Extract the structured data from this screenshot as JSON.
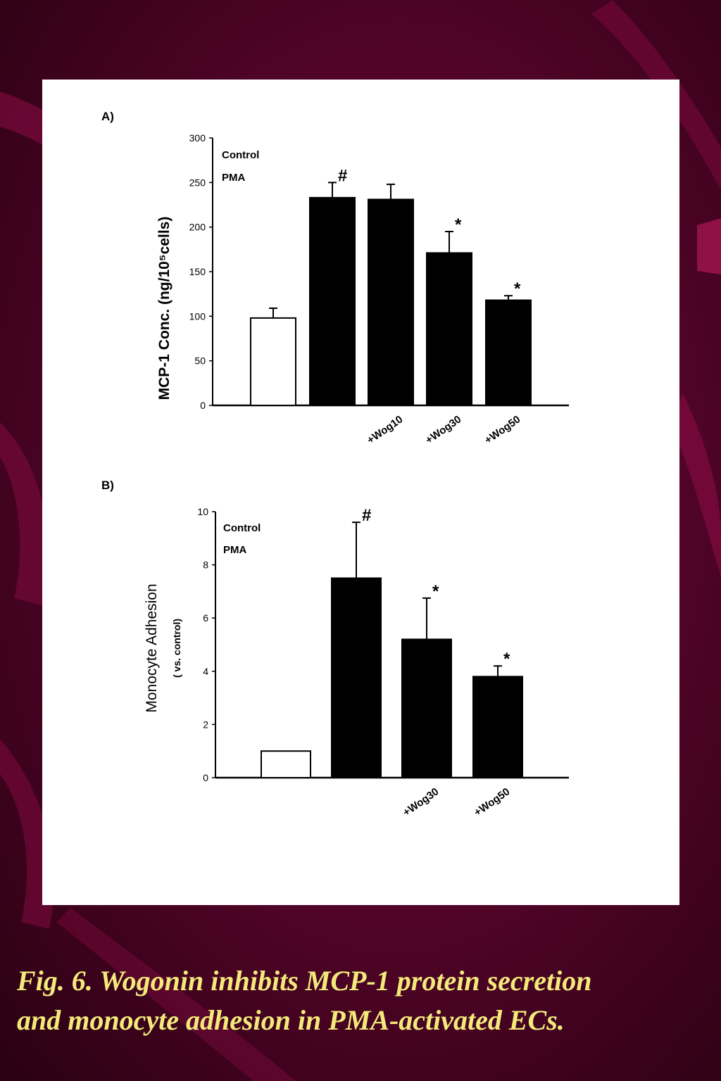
{
  "caption": {
    "line1": "Fig. 6. Wogonin inhibits MCP-1 protein secretion",
    "line2": "and monocyte adhesion in PMA-activated ECs."
  },
  "colors": {
    "background": "#55042a",
    "caption": "#f3ea7a",
    "bar_control": "#ffffff",
    "bar_pma": "#000000"
  },
  "chart_data": [
    {
      "type": "bar",
      "panel_label": "A)",
      "ylabel": "MCP-1 Conc. (ng/10⁵cells)",
      "ylim": [
        0,
        300
      ],
      "yticks": [
        "0",
        "50",
        "100",
        "150",
        "200",
        "250",
        "300"
      ],
      "legend": [
        "Control",
        "PMA"
      ],
      "categories": [
        "",
        "",
        "+Wog10",
        "+Wog30",
        "+Wog50"
      ],
      "values": [
        98,
        233,
        231,
        171,
        118
      ],
      "errors": [
        11,
        17,
        17,
        24,
        5
      ],
      "groups": [
        "Control",
        "PMA",
        "PMA",
        "PMA",
        "PMA"
      ],
      "markers": [
        "",
        "#",
        "",
        "*",
        "*"
      ]
    },
    {
      "type": "bar",
      "panel_label": "B)",
      "ylabel": "Monocyte Adhesion",
      "ylabel2": "( vs. control)",
      "ylim": [
        0,
        10
      ],
      "yticks": [
        "0",
        "2",
        "4",
        "6",
        "8",
        "10"
      ],
      "legend": [
        "Control",
        "PMA"
      ],
      "categories": [
        "",
        "",
        "+Wog30",
        "+Wog50"
      ],
      "values": [
        1.0,
        7.5,
        5.2,
        3.8
      ],
      "errors": [
        0,
        2.1,
        1.55,
        0.4
      ],
      "groups": [
        "Control",
        "PMA",
        "PMA",
        "PMA"
      ],
      "markers": [
        "",
        "#",
        "*",
        "*"
      ]
    }
  ]
}
